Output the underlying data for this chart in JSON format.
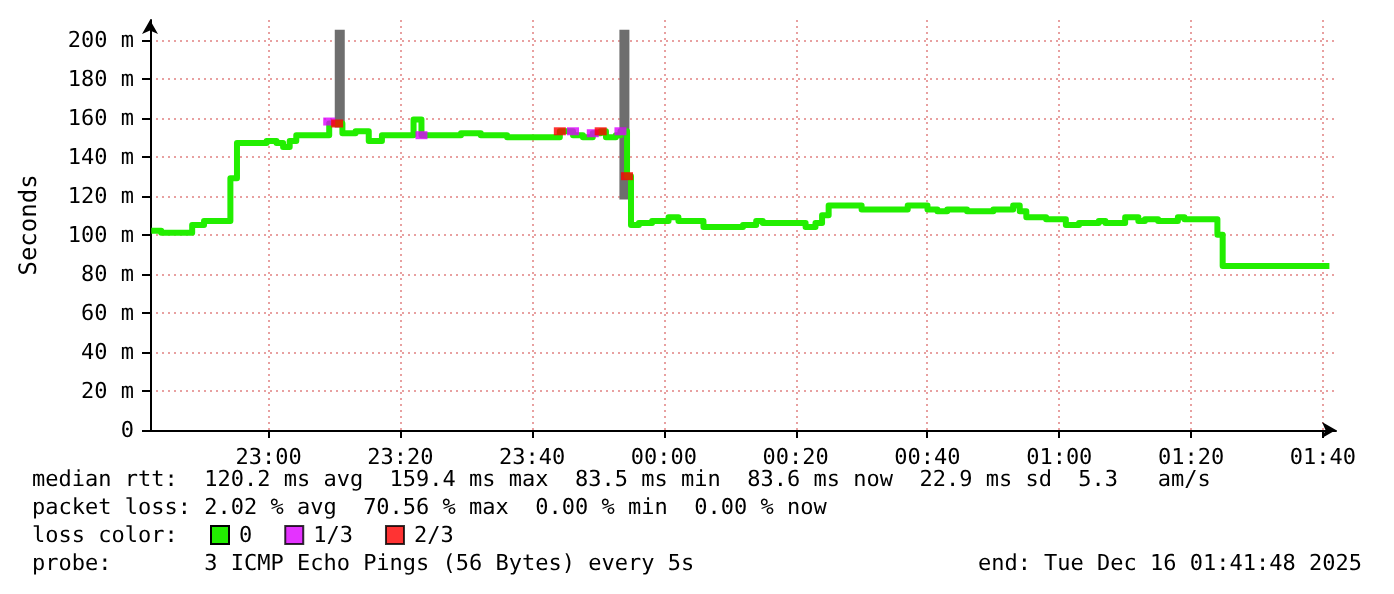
{
  "chart_data": {
    "type": "step",
    "ylabel": "Seconds",
    "xlim": [
      "2025-12-15T22:42",
      "2025-12-16T01:42"
    ],
    "xticks": [
      {
        "value": "2025-12-15T23:00",
        "label": "23:00"
      },
      {
        "value": "2025-12-15T23:20",
        "label": "23:20"
      },
      {
        "value": "2025-12-15T23:40",
        "label": "23:40"
      },
      {
        "value": "2025-12-16T00:00",
        "label": "00:00"
      },
      {
        "value": "2025-12-16T00:20",
        "label": "00:20"
      },
      {
        "value": "2025-12-16T00:40",
        "label": "00:40"
      },
      {
        "value": "2025-12-16T01:00",
        "label": "01:00"
      },
      {
        "value": "2025-12-16T01:20",
        "label": "01:20"
      },
      {
        "value": "2025-12-16T01:40",
        "label": "01:40"
      }
    ],
    "ylim": [
      0,
      210
    ],
    "yticks": [
      0,
      {
        "value": 20,
        "label": "20 m"
      },
      {
        "value": 40,
        "label": "40 m"
      },
      {
        "value": 60,
        "label": "60 m"
      },
      {
        "value": 80,
        "label": "80 m"
      },
      {
        "value": 100,
        "label": "100 m"
      },
      {
        "value": 120,
        "label": "120 m"
      },
      {
        "value": 140,
        "label": "140 m"
      },
      {
        "value": 160,
        "label": "160 m"
      },
      {
        "value": 180,
        "label": "180 m"
      },
      {
        "value": 200,
        "label": "200 m"
      }
    ],
    "grid": true,
    "legend": "bottom",
    "legend_title": "loss color:",
    "series": [
      {
        "type": "bar",
        "color": "#6e6e6e",
        "x": [
          "2025-12-15T23:10:48",
          "2025-12-15T23:54:00"
        ],
        "base": [
          155,
          118
        ],
        "values": [
          50,
          87
        ]
      },
      {
        "name": "0",
        "color": "#22ee00",
        "marker": "none",
        "line_style": "solid",
        "x": [
          "2025-12-15T22:42:12",
          "2025-12-15T22:43:42",
          "2025-12-15T22:48:24",
          "2025-12-15T22:50:12",
          "2025-12-15T22:54:12",
          "2025-12-15T22:55:12",
          "2025-12-15T22:59:42",
          "2025-12-15T23:01:12",
          "2025-12-15T23:02:12",
          "2025-12-15T23:03:12",
          "2025-12-15T23:04:12",
          "2025-12-15T23:09:12",
          "2025-12-15T23:10:24",
          "2025-12-15T23:11:12",
          "2025-12-15T23:13:12",
          "2025-12-15T23:15:12",
          "2025-12-15T23:17:12",
          "2025-12-15T23:22:00",
          "2025-12-15T23:23:12",
          "2025-12-15T23:24:12",
          "2025-12-15T23:29:12",
          "2025-12-15T23:32:12",
          "2025-12-15T23:36:12",
          "2025-12-15T23:44:12",
          "2025-12-15T23:45:42",
          "2025-12-15T23:46:12",
          "2025-12-15T23:47:42",
          "2025-12-15T23:49:12",
          "2025-12-15T23:50:24",
          "2025-12-15T23:51:12",
          "2025-12-15T23:52:42",
          "2025-12-15T23:53:24",
          "2025-12-15T23:54:24",
          "2025-12-15T23:55:00",
          "2025-12-15T23:56:12",
          "2025-12-15T23:58:12",
          "2025-12-16T00:00:42",
          "2025-12-16T00:02:12",
          "2025-12-16T00:04:00",
          "2025-12-16T00:06:00",
          "2025-12-16T00:12:00",
          "2025-12-16T00:14:00",
          "2025-12-16T00:15:00",
          "2025-12-16T00:21:30",
          "2025-12-16T00:23:00",
          "2025-12-16T00:24:00",
          "2025-12-16T00:25:00",
          "2025-12-16T00:30:00",
          "2025-12-16T00:37:00",
          "2025-12-16T00:40:00",
          "2025-12-16T00:41:30",
          "2025-12-16T00:43:00",
          "2025-12-16T00:46:00",
          "2025-12-16T00:50:00",
          "2025-12-16T00:53:00",
          "2025-12-16T00:54:00",
          "2025-12-16T00:55:00",
          "2025-12-16T00:58:00",
          "2025-12-16T01:01:00",
          "2025-12-16T01:03:00",
          "2025-12-16T01:06:00",
          "2025-12-16T01:07:00",
          "2025-12-16T01:10:00",
          "2025-12-16T01:12:00",
          "2025-12-16T01:13:00",
          "2025-12-16T01:15:00",
          "2025-12-16T01:18:00",
          "2025-12-16T01:19:00",
          "2025-12-16T01:24:00",
          "2025-12-16T01:24:48",
          "2025-12-16T01:41:00"
        ],
        "values": [
          102,
          101,
          105,
          107,
          129,
          147,
          148,
          147,
          145,
          148,
          151,
          157,
          157,
          152,
          153,
          148,
          151,
          159,
          151,
          151,
          152,
          151,
          150,
          153,
          153,
          151,
          150,
          152,
          153,
          150,
          151,
          153,
          130,
          105,
          106,
          107,
          109,
          107,
          107,
          104,
          105,
          107,
          106,
          104,
          106,
          110,
          115,
          113,
          115,
          113,
          112,
          113,
          112,
          113,
          115,
          112,
          109,
          108,
          105,
          106,
          107,
          106,
          109,
          107,
          108,
          107,
          109,
          108,
          100,
          84,
          84
        ]
      },
      {
        "type": "scatter",
        "name": "1/3",
        "color": "#dd00ff",
        "marker": "square",
        "x": [
          "2025-12-15T23:09:12",
          "2025-12-15T23:23:12",
          "2025-12-15T23:46:12",
          "2025-12-15T23:49:12",
          "2025-12-15T23:53:24"
        ],
        "values": [
          158,
          151,
          153,
          152,
          153
        ]
      },
      {
        "type": "scatter",
        "name": "2/3",
        "color": "#ff0000",
        "marker": "square",
        "x": [
          "2025-12-15T23:10:24",
          "2025-12-15T23:44:12",
          "2025-12-15T23:50:24",
          "2025-12-15T23:54:24"
        ],
        "values": [
          157,
          153,
          153,
          130
        ]
      }
    ],
    "annotations": [
      "median rtt:  120.2 ms avg  159.4 ms max  83.5 ms min  83.6 ms now  22.9 ms sd  5.3   am/s",
      "packet loss: 2.02 % avg  70.56 % max  0.00 % min  0.00 % now",
      "probe:       3 ICMP Echo Pings (56 Bytes) every 5s",
      "end: Tue Dec 16 01:41:48 2025"
    ]
  }
}
